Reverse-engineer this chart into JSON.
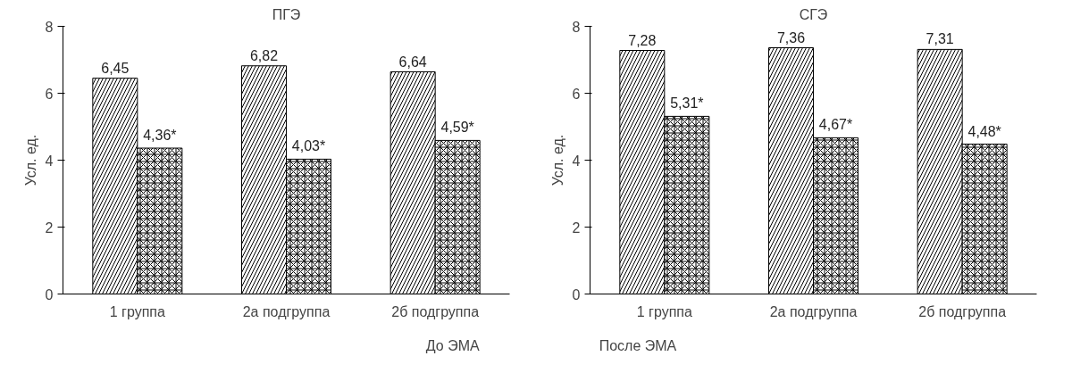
{
  "chart_data": [
    {
      "type": "bar",
      "title": "ПГЭ",
      "ylabel": "Усл. ед.",
      "categories": [
        "1 группа",
        "2а подгруппа",
        "2б подгруппа"
      ],
      "ylim": [
        0,
        8
      ],
      "yticks": [
        0,
        2,
        4,
        6,
        8
      ],
      "grid": false,
      "legend": "bottom",
      "series": [
        {
          "name": "До ЭМА",
          "color": "#000000",
          "values": [
            6.45,
            6.82,
            6.64
          ],
          "value_labels": [
            "6,45",
            "6,82",
            "6,64"
          ]
        },
        {
          "name": "После ЭМА",
          "color": "#000000",
          "values": [
            4.36,
            4.03,
            4.59
          ],
          "value_labels": [
            "4,36*",
            "4,03*",
            "4,59*"
          ]
        }
      ]
    },
    {
      "type": "bar",
      "title": "СГЭ",
      "ylabel": "Усл. ед.",
      "categories": [
        "1 группа",
        "2а подгруппа",
        "2б подгруппа"
      ],
      "ylim": [
        0,
        8
      ],
      "yticks": [
        0,
        2,
        4,
        6,
        8
      ],
      "grid": false,
      "series": [
        {
          "color": "#000000",
          "values": [
            7.28,
            7.36,
            7.31
          ],
          "value_labels": [
            "7,28",
            "7,36",
            "7,31"
          ]
        },
        {
          "color": "#000000",
          "values": [
            5.31,
            4.67,
            4.48
          ],
          "value_labels": [
            "5,31*",
            "4,67*",
            "4,48*"
          ]
        }
      ]
    }
  ]
}
